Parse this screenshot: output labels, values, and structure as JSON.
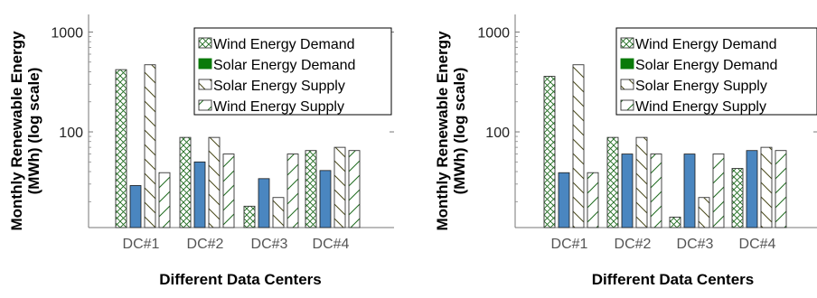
{
  "chart_data": [
    {
      "type": "bar",
      "scale": "log",
      "categories": [
        "DC#1",
        "DC#2",
        "DC#3",
        "DC#4"
      ],
      "xlabel": "Different Data Centers",
      "ylabel_line1": "Monthly Renewable Energy",
      "ylabel_line2": "(MWh) (log scale)",
      "yticks": [
        {
          "value": 100,
          "label": "100"
        },
        {
          "value": 1000,
          "label": "1000"
        }
      ],
      "ylim": [
        11,
        1500
      ],
      "legend_position": "top-right",
      "series": [
        {
          "name": "Wind Energy Demand",
          "pattern": "crosshatch",
          "values": [
            420,
            88,
            18,
            65
          ]
        },
        {
          "name": "Solar Energy Demand",
          "pattern": "solid",
          "values": [
            29,
            50,
            34,
            41
          ]
        },
        {
          "name": "Solar Energy Supply",
          "pattern": "backslash",
          "values": [
            470,
            88,
            22,
            70
          ]
        },
        {
          "name": "Wind Energy Supply",
          "pattern": "slash",
          "values": [
            39,
            60,
            60,
            65
          ]
        }
      ]
    },
    {
      "type": "bar",
      "scale": "log",
      "categories": [
        "DC#1",
        "DC#2",
        "DC#3",
        "DC#4"
      ],
      "xlabel": "Different Data Centers",
      "ylabel_line1": "Monthly Renewable Energy",
      "ylabel_line2": "(MWh) (log scale)",
      "yticks": [
        {
          "value": 100,
          "label": "100"
        },
        {
          "value": 1000,
          "label": "1000"
        }
      ],
      "ylim": [
        11,
        1500
      ],
      "legend_position": "top-right",
      "series": [
        {
          "name": "Wind Energy Demand",
          "pattern": "crosshatch",
          "values": [
            360,
            88,
            14,
            43
          ]
        },
        {
          "name": "Solar Energy Demand",
          "pattern": "solid",
          "values": [
            39,
            60,
            60,
            65
          ]
        },
        {
          "name": "Solar Energy Supply",
          "pattern": "backslash",
          "values": [
            470,
            88,
            22,
            70
          ]
        },
        {
          "name": "Wind Energy Supply",
          "pattern": "slash",
          "values": [
            39,
            60,
            60,
            65
          ]
        }
      ]
    }
  ],
  "colors": {
    "hatch_green": "#1e6b1e",
    "solid_fill": "#4a86c0",
    "solid_edge": "#1a1a1a",
    "legend_solid_swatch": "#0a7a0a"
  }
}
